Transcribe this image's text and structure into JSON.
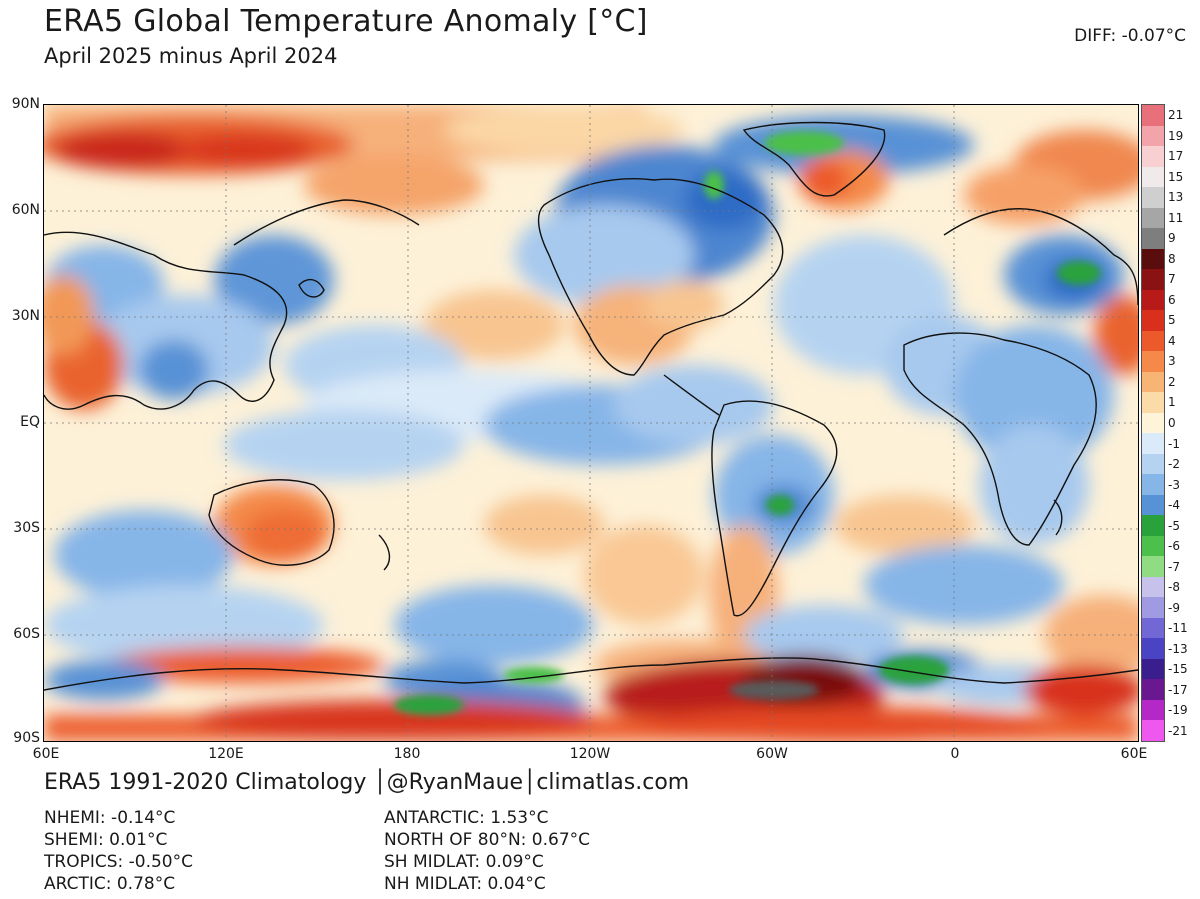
{
  "header": {
    "title": "ERA5 Global Temperature Anomaly [°C]",
    "subtitle": "April 2025 minus April 2024",
    "diff": "DIFF: -0.07°C"
  },
  "map": {
    "lat_labels": [
      "90N",
      "60N",
      "30N",
      "EQ",
      "30S",
      "60S",
      "90S"
    ],
    "lon_labels": [
      "60E",
      "120E",
      "180",
      "120W",
      "60W",
      "0",
      "60E"
    ]
  },
  "colorbar": {
    "labels": [
      "21",
      "19",
      "17",
      "15",
      "13",
      "11",
      "9",
      "8",
      "7",
      "6",
      "5",
      "4",
      "3",
      "2",
      "1",
      "0",
      "-1",
      "-2",
      "-3",
      "-4",
      "-5",
      "-6",
      "-7",
      "-8",
      "-9",
      "-11",
      "-13",
      "-15",
      "-17",
      "-19",
      "-21"
    ],
    "colors": [
      "#e8707a",
      "#f2a4aa",
      "#f8d0d2",
      "#f0eaea",
      "#cfcfcf",
      "#a6a6a6",
      "#7e7e7e",
      "#5a0d0d",
      "#8a1212",
      "#b81a1a",
      "#d8301c",
      "#ec5a2c",
      "#f4894a",
      "#f8b475",
      "#fbdba8",
      "#fdf4da",
      "#dbeaf8",
      "#b5d3f1",
      "#86b5e8",
      "#5892d6",
      "#29a23c",
      "#4cc04a",
      "#8fdc82",
      "#c6c2ec",
      "#a09ae2",
      "#7168d6",
      "#4a44c4",
      "#3a1e8e",
      "#6a1890",
      "#b428c8",
      "#ee58ee"
    ]
  },
  "footer": {
    "credit": "ERA5 1991-2020 Climatology │@RyanMaue│climatlas.com",
    "stats_left": [
      "NHEMI: -0.14°C",
      "SHEMI: 0.01°C",
      "TROPICS: -0.50°C",
      "ARCTIC: 0.78°C"
    ],
    "stats_right": [
      "ANTARCTIC: 1.53°C",
      "NORTH OF 80°N: 0.67°C",
      "SH MIDLAT: 0.09°C",
      "NH MIDLAT: 0.04°C"
    ]
  }
}
